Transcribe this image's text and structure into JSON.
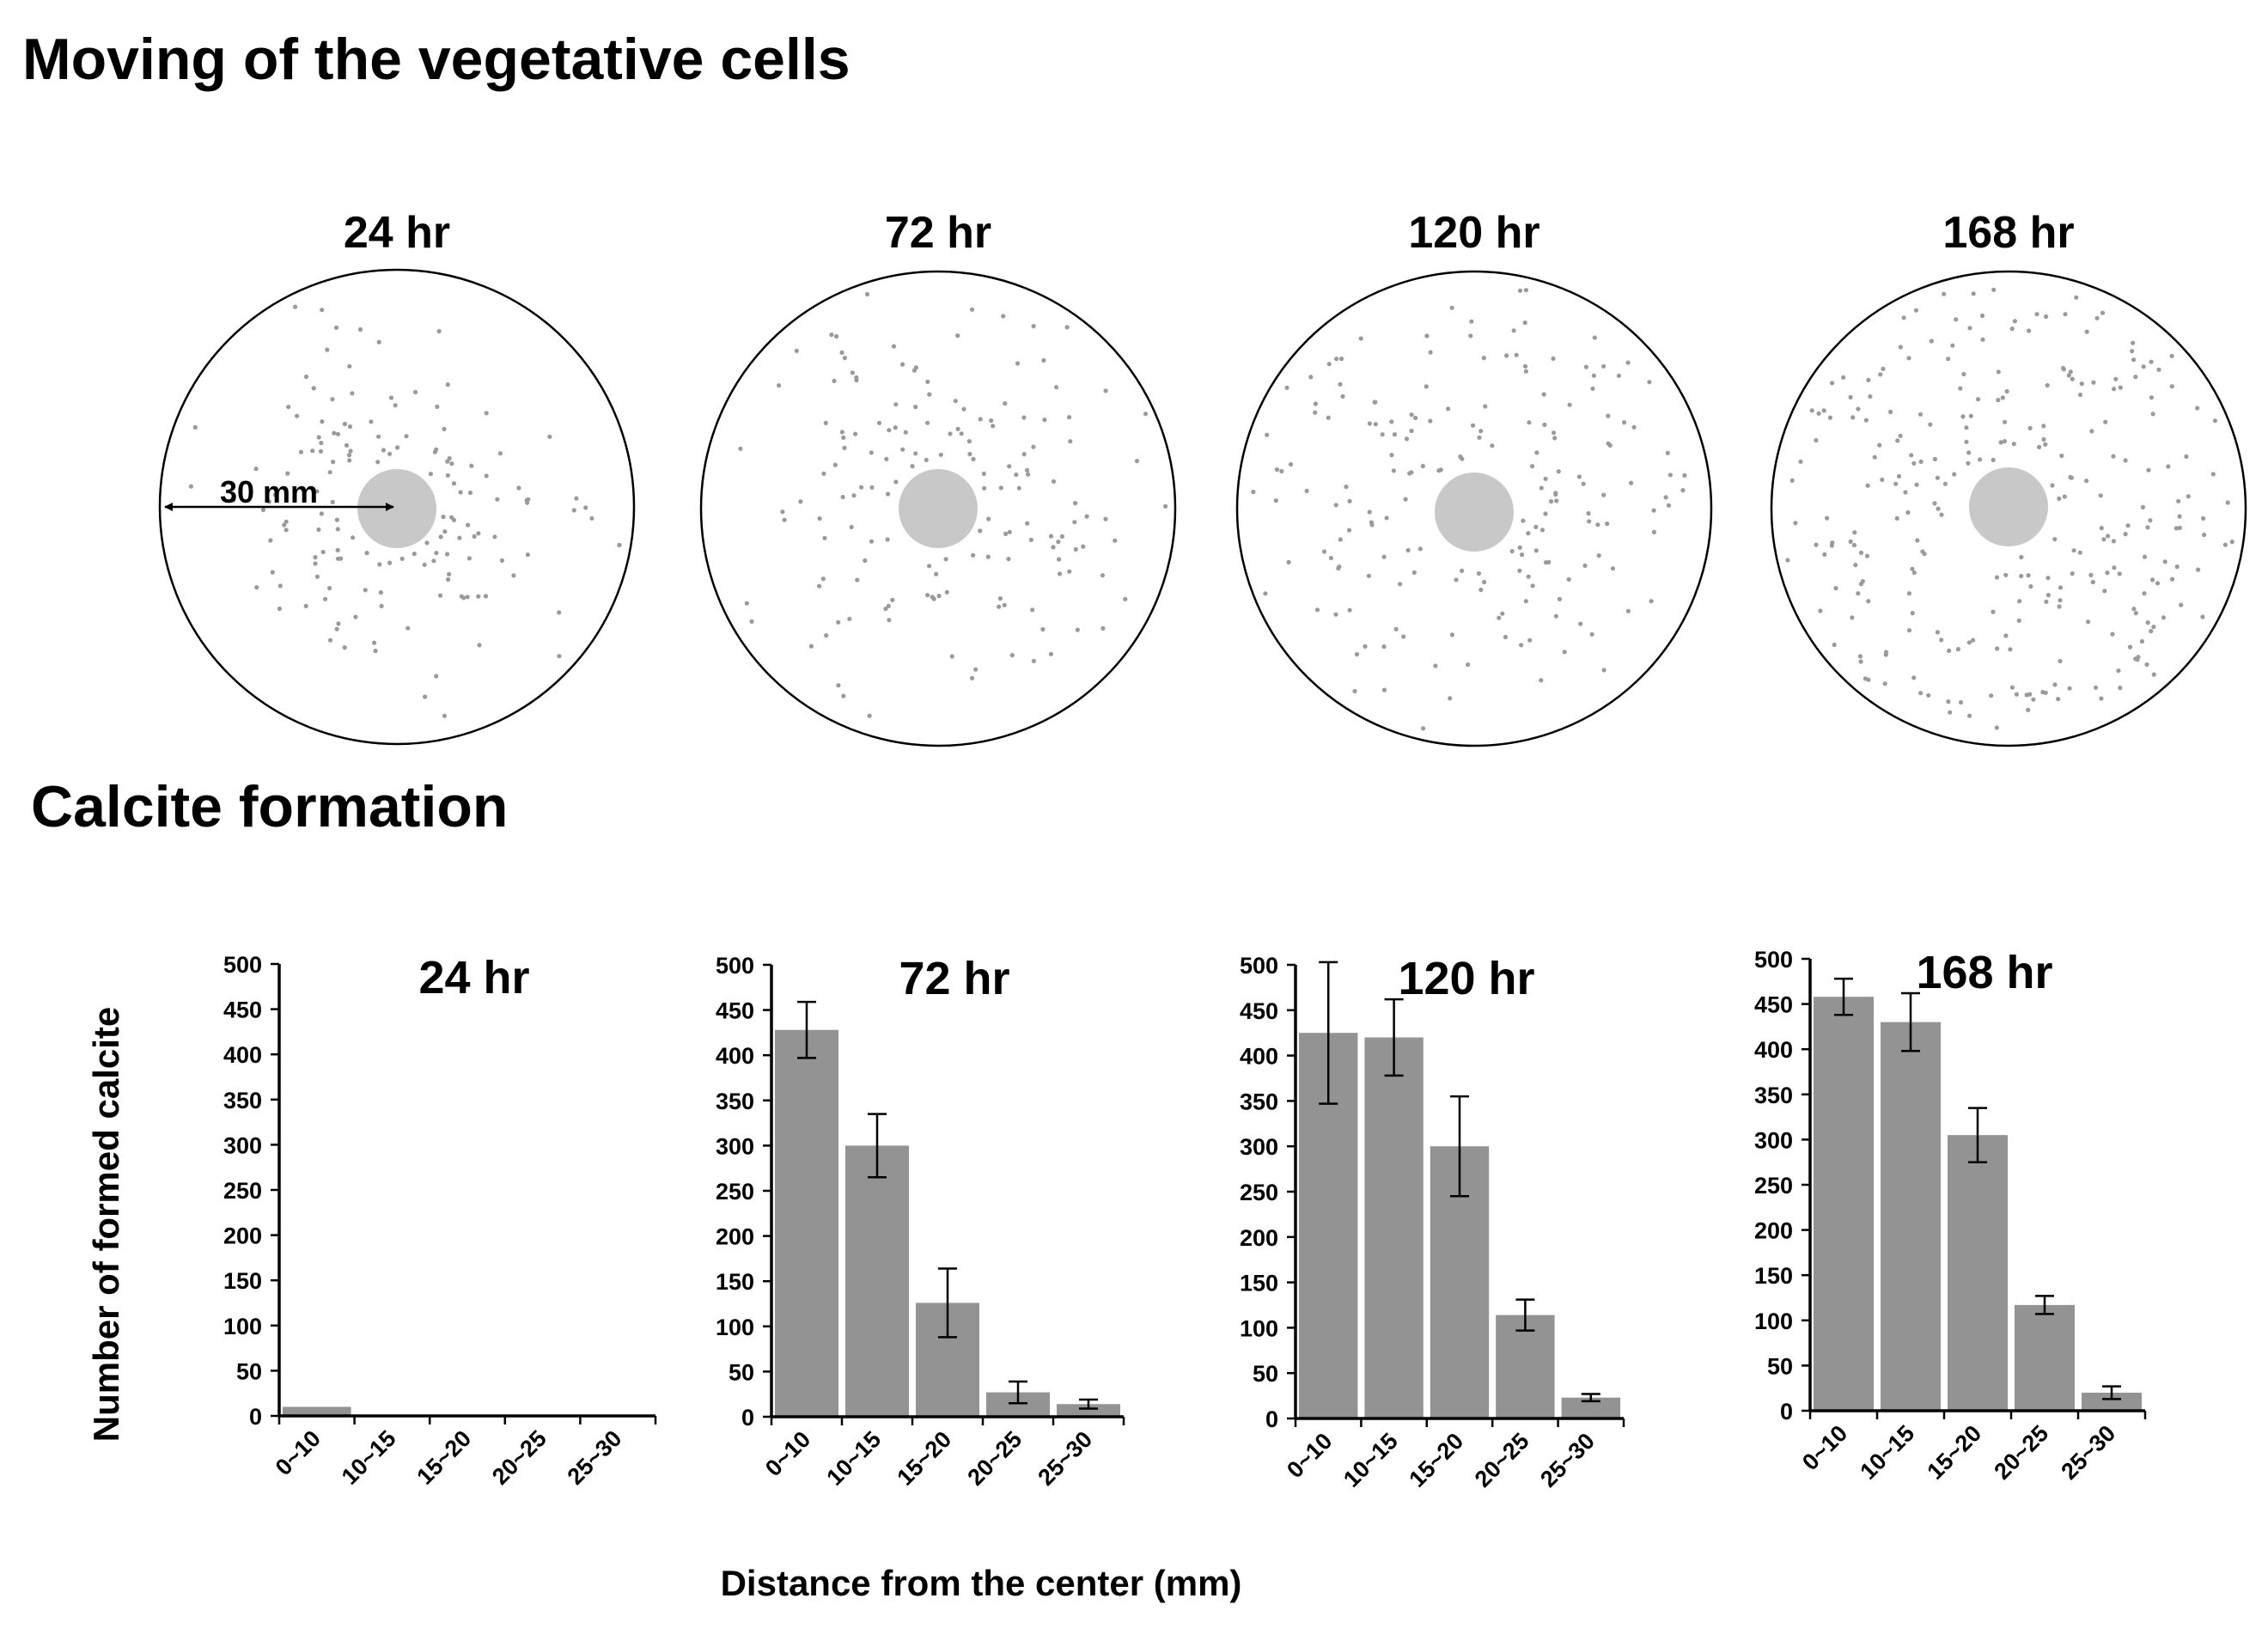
{
  "section_titles": {
    "moving": "Moving of the vegetative cells",
    "calcite": "Calcite formation"
  },
  "plates": [
    {
      "label": "24 hr",
      "spread": "low"
    },
    {
      "label": "72 hr",
      "spread": "medium"
    },
    {
      "label": "120 hr",
      "spread": "high"
    },
    {
      "label": "168 hr",
      "spread": "full"
    }
  ],
  "scale": {
    "label": "30 mm"
  },
  "colors": {
    "bar": "#939393",
    "inoculum": "#c8c8c8",
    "cell_dot": "#9a9a9a",
    "axis": "#000000"
  },
  "chart_data": [
    {
      "type": "bar",
      "title": "24 hr",
      "categories": [
        "0~10",
        "10~15",
        "15~20",
        "20~25",
        "25~30"
      ],
      "values": [
        10,
        0,
        0,
        0,
        0
      ],
      "errors": [
        0,
        0,
        0,
        0,
        0
      ],
      "ylabel": "Number of formed calcite",
      "xlabel": "Distance from the center (mm)",
      "ylim": [
        0,
        500
      ],
      "yticks": [
        0,
        50,
        100,
        150,
        200,
        250,
        300,
        350,
        400,
        450,
        500
      ],
      "grid": false
    },
    {
      "type": "bar",
      "title": "72 hr",
      "categories": [
        "0~10",
        "10~15",
        "15~20",
        "20~25",
        "25~30"
      ],
      "values": [
        428,
        300,
        126,
        27,
        14
      ],
      "errors": [
        31,
        35,
        38,
        12,
        5
      ],
      "ylabel": "Number of formed calcite",
      "xlabel": "Distance from the center (mm)",
      "ylim": [
        0,
        500
      ],
      "yticks": [
        0,
        50,
        100,
        150,
        200,
        250,
        300,
        350,
        400,
        450,
        500
      ],
      "grid": false
    },
    {
      "type": "bar",
      "title": "120 hr",
      "categories": [
        "0~10",
        "10~15",
        "15~20",
        "20~25",
        "25~30"
      ],
      "values": [
        425,
        420,
        300,
        114,
        23
      ],
      "errors": [
        78,
        42,
        55,
        17,
        4
      ],
      "ylabel": "Number of formed calcite",
      "xlabel": "Distance from the center (mm)",
      "ylim": [
        0,
        500
      ],
      "yticks": [
        0,
        50,
        100,
        150,
        200,
        250,
        300,
        350,
        400,
        450,
        500
      ],
      "grid": false
    },
    {
      "type": "bar",
      "title": "168 hr",
      "categories": [
        "0~10",
        "10~15",
        "15~20",
        "20~25",
        "25~30"
      ],
      "values": [
        458,
        430,
        305,
        117,
        20
      ],
      "errors": [
        20,
        32,
        30,
        10,
        7
      ],
      "ylabel": "Number of formed calcite",
      "xlabel": "Distance from the center (mm)",
      "ylim": [
        0,
        500
      ],
      "yticks": [
        0,
        50,
        100,
        150,
        200,
        250,
        300,
        350,
        400,
        450,
        500
      ],
      "grid": false
    }
  ]
}
